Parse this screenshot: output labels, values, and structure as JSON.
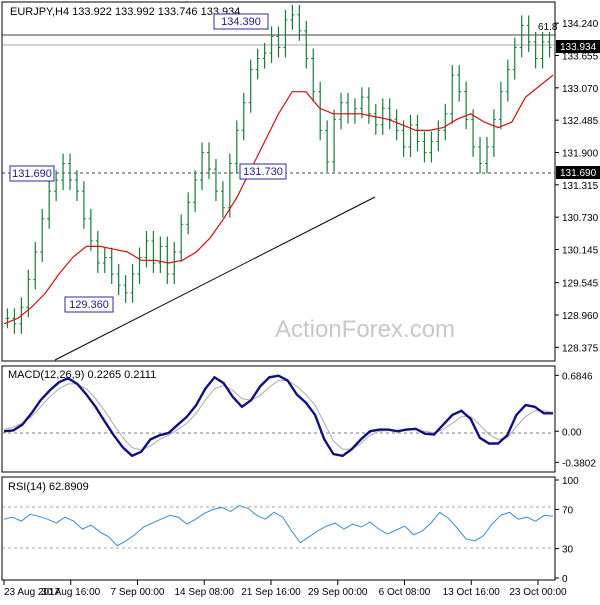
{
  "chart_data": [
    {
      "type": "candlestick",
      "title": "EURJPY,H4 133.922 133.992 133.746 133.934",
      "symbol": "EURJPY",
      "timeframe": "H4",
      "ohlc_header": "133.922 133.992 133.746 133.934",
      "watermark": "ActionForex.com",
      "last_price_label": "133.934",
      "level_label": "131.690",
      "fib_label": "61.8",
      "ylim": [
        128.2,
        134.55
      ],
      "y_ticks": [
        "134.240",
        "133.655",
        "133.070",
        "132.485",
        "131.900",
        "131.315",
        "130.730",
        "130.145",
        "129.545",
        "128.960",
        "128.375"
      ],
      "annotations": [
        "134.390",
        "131.690",
        "131.730",
        "129.360"
      ],
      "x_ticks": [
        "23 Aug 2017",
        "30 Aug 16:00",
        "7 Sep 00:00",
        "14 Sep 08:00",
        "21 Sep 16:00",
        "29 Sep 00:00",
        "6 Oct 08:00",
        "13 Oct 16:00",
        "23 Oct 00:00"
      ],
      "series": [
        {
          "name": "price",
          "values": [
            128.9,
            128.8,
            129.1,
            129.6,
            130.1,
            130.7,
            131.2,
            131.4,
            131.7,
            131.4,
            131.2,
            130.7,
            130.3,
            129.9,
            130.0,
            129.7,
            129.5,
            129.36,
            129.7,
            130.0,
            130.3,
            129.9,
            130.2,
            129.7,
            130.1,
            130.6,
            131.0,
            131.4,
            131.9,
            131.6,
            131.2,
            130.9,
            131.7,
            132.3,
            132.8,
            133.4,
            133.6,
            133.7,
            134.0,
            133.8,
            134.3,
            134.39,
            134.1,
            133.6,
            133.0,
            132.3,
            131.73,
            132.5,
            132.8,
            132.6,
            132.7,
            132.9,
            132.6,
            132.4,
            132.7,
            132.5,
            132.3,
            132.0,
            132.4,
            132.1,
            131.9,
            132.1,
            132.3,
            132.6,
            133.3,
            133.0,
            132.5,
            132.0,
            131.7,
            132.0,
            132.5,
            133.0,
            133.4,
            133.8,
            134.2,
            133.9,
            133.6,
            133.9,
            133.8
          ]
        },
        {
          "name": "moving-average",
          "values": [
            128.8,
            128.9,
            129.1,
            129.35,
            129.7,
            130.0,
            130.2,
            130.2,
            130.15,
            130.1,
            129.95,
            129.95,
            129.9,
            129.95,
            130.1,
            130.35,
            130.7,
            131.1,
            131.6,
            132.1,
            132.6,
            133.0,
            133.0,
            132.7,
            132.6,
            132.6,
            132.6,
            132.55,
            132.5,
            132.4,
            132.3,
            132.3,
            132.35,
            132.5,
            132.6,
            132.45,
            132.35,
            132.45,
            132.9,
            133.1,
            133.3
          ]
        }
      ]
    },
    {
      "type": "line",
      "title": "MACD(12,26,9) 0.2265 0.2111",
      "ylim": [
        -0.45,
        0.75
      ],
      "y_ticks": [
        "0.6846",
        "0.00",
        "-0.3802"
      ],
      "series": [
        {
          "name": "macd",
          "values": [
            0.0,
            0.01,
            0.08,
            0.22,
            0.38,
            0.5,
            0.6,
            0.65,
            0.58,
            0.45,
            0.3,
            0.12,
            -0.05,
            -0.2,
            -0.3,
            -0.25,
            -0.1,
            -0.05,
            -0.02,
            0.08,
            0.18,
            0.32,
            0.52,
            0.66,
            0.59,
            0.42,
            0.3,
            0.38,
            0.55,
            0.66,
            0.68,
            0.62,
            0.45,
            0.35,
            0.2,
            -0.1,
            -0.28,
            -0.3,
            -0.22,
            -0.1,
            0.0,
            0.02,
            0.02,
            0.0,
            0.02,
            0.03,
            -0.03,
            -0.04,
            0.08,
            0.2,
            0.25,
            0.15,
            -0.08,
            -0.15,
            -0.15,
            -0.05,
            0.2,
            0.32,
            0.3,
            0.22,
            0.22
          ]
        },
        {
          "name": "signal",
          "values": [
            0.02,
            0.05,
            0.1,
            0.18,
            0.3,
            0.42,
            0.52,
            0.58,
            0.58,
            0.52,
            0.4,
            0.25,
            0.08,
            -0.08,
            -0.2,
            -0.23,
            -0.18,
            -0.1,
            -0.05,
            0.02,
            0.1,
            0.22,
            0.38,
            0.52,
            0.56,
            0.5,
            0.4,
            0.38,
            0.44,
            0.54,
            0.62,
            0.62,
            0.55,
            0.45,
            0.32,
            0.1,
            -0.12,
            -0.22,
            -0.22,
            -0.15,
            -0.05,
            0.0,
            0.01,
            0.01,
            0.01,
            0.02,
            0.0,
            -0.02,
            0.02,
            0.1,
            0.18,
            0.18,
            0.08,
            -0.04,
            -0.1,
            -0.08,
            0.06,
            0.18,
            0.25,
            0.25,
            0.23
          ]
        }
      ]
    },
    {
      "type": "line",
      "title": "RSI(14) 62.8909",
      "ylim": [
        0,
        100
      ],
      "y_ticks": [
        "100",
        "70",
        "30",
        "0"
      ],
      "series": [
        {
          "name": "rsi",
          "values": [
            60,
            62,
            58,
            65,
            63,
            60,
            56,
            62,
            58,
            50,
            54,
            47,
            42,
            33,
            38,
            44,
            52,
            56,
            60,
            64,
            62,
            55,
            60,
            66,
            70,
            72,
            68,
            74,
            71,
            64,
            60,
            67,
            62,
            48,
            36,
            42,
            48,
            53,
            56,
            50,
            55,
            52,
            57,
            50,
            45,
            49,
            53,
            44,
            48,
            56,
            67,
            61,
            51,
            40,
            38,
            43,
            55,
            64,
            67,
            60,
            62,
            58,
            64,
            63
          ]
        }
      ]
    }
  ]
}
